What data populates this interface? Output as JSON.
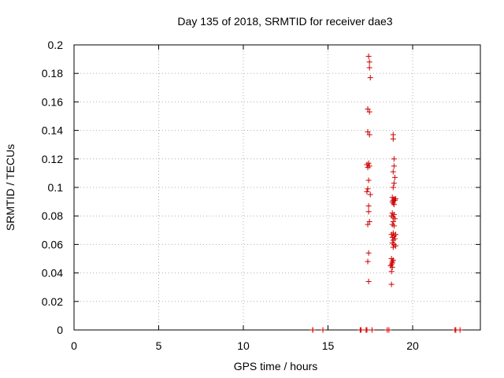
{
  "chart_data": {
    "type": "scatter",
    "title": "Day 135 of 2018, SRMTID for receiver dae3",
    "xlabel": "GPS time / hours",
    "ylabel": "SRMTID / TECUs",
    "xlim": [
      0,
      24
    ],
    "ylim": [
      0,
      0.2
    ],
    "xticks": [
      0,
      5,
      10,
      15,
      20
    ],
    "xtick_labels": [
      "0",
      "5",
      "10",
      "15",
      "20"
    ],
    "yticks": [
      0,
      0.02,
      0.04,
      0.06,
      0.08,
      0.1,
      0.12,
      0.14,
      0.16,
      0.18,
      0.2
    ],
    "ytick_labels": [
      "0",
      "0.02",
      "0.04",
      "0.06",
      "0.08",
      "0.1",
      "0.12",
      "0.14",
      "0.16",
      "0.18",
      "0.2"
    ],
    "grid": true,
    "marker": "+",
    "marker_color": "#cc0000",
    "series": [
      {
        "name": "SRMTID",
        "x": [
          17.4,
          17.45,
          17.45,
          17.5,
          17.35,
          17.45,
          17.35,
          17.45,
          17.3,
          17.4,
          17.35,
          17.45,
          17.4,
          17.35,
          17.3,
          17.5,
          17.4,
          17.4,
          17.35,
          17.45,
          17.4,
          17.35,
          17.4,
          18.85,
          18.85,
          18.9,
          18.9,
          18.85,
          18.95,
          18.9,
          18.85,
          18.8,
          18.9,
          18.85,
          18.8,
          18.95,
          18.85,
          18.9,
          19.0,
          18.8,
          18.9,
          18.75,
          18.85,
          18.95,
          18.85,
          18.8,
          18.9,
          18.85,
          18.75,
          18.9,
          19.0,
          18.8,
          18.95,
          18.85,
          18.8,
          18.9,
          18.85,
          19.0,
          18.75,
          18.85,
          18.8,
          18.8,
          18.75,
          18.7,
          18.8,
          18.75,
          18.75,
          14.1,
          14.1,
          14.7,
          16.9,
          16.95,
          17.25,
          17.3,
          17.6,
          18.5,
          18.6,
          22.5,
          22.55,
          22.8
        ],
        "y": [
          0.192,
          0.188,
          0.184,
          0.177,
          0.155,
          0.153,
          0.139,
          0.137,
          0.116,
          0.117,
          0.114,
          0.115,
          0.105,
          0.099,
          0.097,
          0.095,
          0.087,
          0.083,
          0.074,
          0.076,
          0.054,
          0.048,
          0.034,
          0.137,
          0.134,
          0.12,
          0.115,
          0.111,
          0.107,
          0.103,
          0.1,
          0.093,
          0.092,
          0.091,
          0.09,
          0.091,
          0.089,
          0.088,
          0.092,
          0.082,
          0.081,
          0.08,
          0.079,
          0.078,
          0.076,
          0.074,
          0.073,
          0.068,
          0.067,
          0.066,
          0.067,
          0.065,
          0.064,
          0.063,
          0.061,
          0.06,
          0.058,
          0.059,
          0.05,
          0.049,
          0.048,
          0.047,
          0.046,
          0.045,
          0.044,
          0.041,
          0.032,
          0.0,
          0.0,
          0.0,
          0.0,
          0.0,
          0.0,
          0.0,
          0.0,
          0.0,
          0.0,
          0.0,
          0.0,
          0.0
        ]
      }
    ]
  }
}
